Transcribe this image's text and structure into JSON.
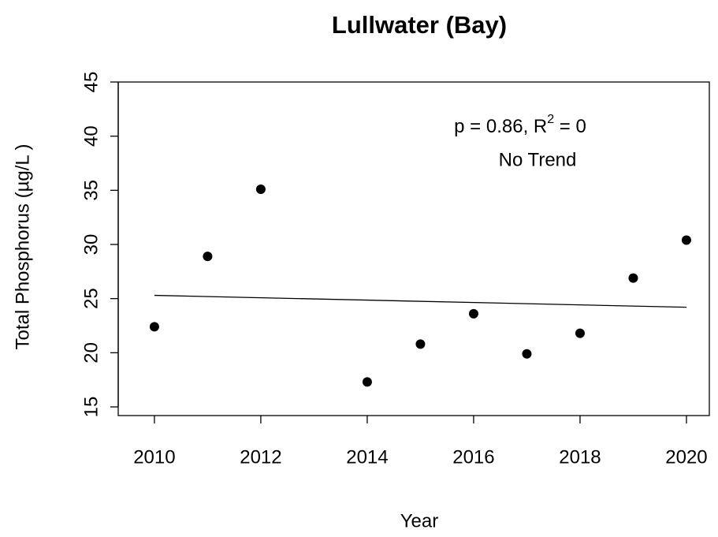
{
  "chart_data": {
    "type": "scatter",
    "title": "Lullwater (Bay)",
    "x_label": "Year",
    "y_label": "Total Phosphorus (µg/L )",
    "x": [
      2010,
      2011,
      2012,
      2014,
      2015,
      2016,
      2017,
      2018,
      2019,
      2020
    ],
    "values": [
      22.4,
      28.9,
      35.1,
      17.3,
      20.8,
      23.6,
      19.9,
      21.8,
      26.9,
      30.4
    ],
    "color": "#000000",
    "trend": {
      "x": [
        2010,
        2020
      ],
      "values": [
        25.3,
        24.2
      ]
    },
    "annotation": {
      "text": "p = 0.86, R",
      "sup": "2",
      "tail": " = 0",
      "note": "No Trend"
    },
    "xlim": [
      2009.32,
      2020.43
    ],
    "xticks": [
      2010,
      2012,
      2014,
      2016,
      2018,
      2020
    ],
    "ylim": [
      14.2,
      45
    ],
    "yticks": [
      15,
      20,
      25,
      30,
      35,
      40,
      45
    ]
  }
}
